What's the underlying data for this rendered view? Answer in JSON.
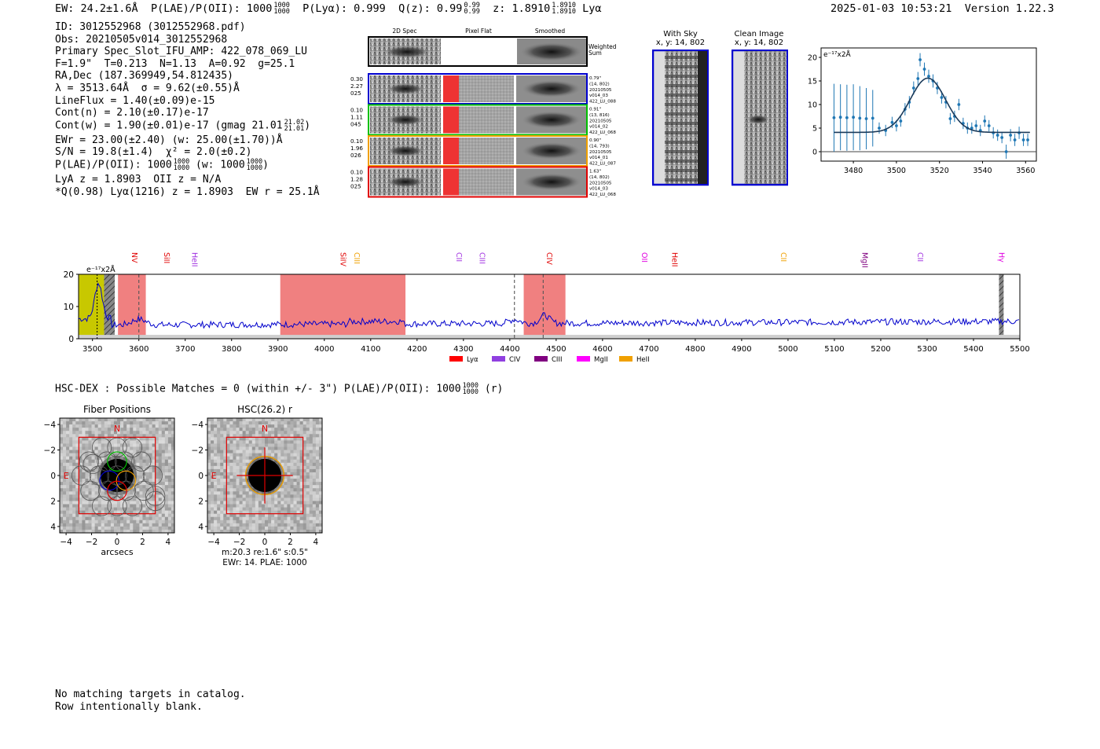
{
  "header": {
    "ew": "EW: 24.2±1.6Å",
    "plae_label": "P(LAE)/P(OII): 1000",
    "plae_hi": "1000",
    "plae_lo": "1000",
    "plya": "P(Lyα): 0.999",
    "qz_label": "Q(z): 0.99",
    "qz_hi": "0.99",
    "qz_lo": "0.99",
    "z_label": "z: 1.8910",
    "z_hi": "1.8910",
    "z_lo": "1.8910",
    "z_line": "Lyα",
    "timestamp": "2025-01-03 10:53:21",
    "version": "Version 1.22.3"
  },
  "info": {
    "id": "ID: 3012552968 (3012552968.pdf)",
    "obs": "Obs: 20210505v014_3012552968",
    "primary": "Primary Spec_Slot_IFU_AMP: 422_078_069_LU",
    "fwhm": "F=1.9\"  T=0.213  N=1.13  A=0.92  g=25.1",
    "radec": "RA,Dec (187.369949,54.812435)",
    "lambda": "λ = 3513.64Å  σ = 9.62(±0.55)Å",
    "lineflux": "LineFlux = 1.40(±0.09)e-15",
    "contn": "Cont(n) = 2.10(±0.17)e-17",
    "contw": "Cont(w) = 1.90(±0.01)e-17 (gmag 21.01",
    "gmag_hi": "21.02",
    "gmag_lo": "21.01",
    "contw_close": ")",
    "ewr": "EWr = 23.00(±2.40) (w: 25.00(±1.70))Å",
    "sn": "S/N = 19.8(±1.4)  χ² = 2.0(±0.2)",
    "plae": "P(LAE)/P(OII): 1000",
    "plae_hi": "1000",
    "plae_lo": "1000",
    "plae_w": "(w: 1000",
    "plae_w_hi": "1000",
    "plae_w_lo": "1000",
    "plae_w_close": ")",
    "lya": "LyA z = 1.8903  OII z = N/A",
    "q": "*Q(0.98) Lyα(1216) z = 1.8903  EW r = 25.1Å"
  },
  "cutouts": {
    "col_2d": "2D Spec",
    "col_flat": "Pixel Flat",
    "col_smooth": "Smoothed",
    "weighted": "Weighted",
    "weighted2": "Sum",
    "rows": [
      {
        "color": "#0000d0",
        "left": [
          "0.30",
          "2.27",
          "025"
        ],
        "right": [
          "0.79\"",
          "(14, 802)",
          "20210505",
          "v014_03",
          "422_LU_088"
        ]
      },
      {
        "color": "#00c000",
        "left": [
          "0.10",
          "1.11",
          "045"
        ],
        "right": [
          "0.91\"",
          "(13, 816)",
          "20210505",
          "v014_02",
          "422_LU_068"
        ]
      },
      {
        "color": "#f0a000",
        "left": [
          "0.10",
          "1.96",
          "026"
        ],
        "right": [
          "0.90\"",
          "(14, 793)",
          "20210505",
          "v014_01",
          "422_LU_087"
        ]
      },
      {
        "color": "#e00000",
        "left": [
          "0.10",
          "1.28",
          "025"
        ],
        "right": [
          "1.63\"",
          "(14, 802)",
          "20210505",
          "v014_03",
          "422_LU_068"
        ]
      }
    ],
    "with_sky": "With Sky",
    "with_sky_xy": "x, y: 14, 802",
    "clean": "Clean Image",
    "clean_xy": "x, y: 14, 802"
  },
  "hsc": {
    "line": "HSC-DEX : Possible Matches = 0 (within +/- 3\")  P(LAE)/P(OII): 1000",
    "plae_hi": "1000",
    "plae_lo": "1000",
    "band": "(r)",
    "fiber_title": "Fiber Positions",
    "hsc_title": "HSC(26.2) r",
    "xlabel": "arcsecs",
    "north": "N",
    "east": "E",
    "ticks": [
      "−4",
      "−2",
      "0",
      "2",
      "4"
    ],
    "mag_line": "m:20.3  re:1.6\"  s:0.5\"",
    "ew_line": "EWr: 14. PLAE: 1000"
  },
  "footer": {
    "line1": "No matching targets in catalog.",
    "line2": "Row intentionally blank."
  },
  "chart_data": [
    {
      "type": "line",
      "name": "emission-line-fit",
      "ylabel_note": "e⁻¹⁷x2Å",
      "xlim": [
        3465,
        3565
      ],
      "ylim": [
        -2,
        22
      ],
      "xticks": [
        3480,
        3500,
        3520,
        3540,
        3560
      ],
      "yticks": [
        0,
        5,
        10,
        15,
        20
      ],
      "points": [
        {
          "x": 3471,
          "y": 7.2,
          "err": 7.2
        },
        {
          "x": 3474,
          "y": 7.3,
          "err": 7.0
        },
        {
          "x": 3477,
          "y": 7.2,
          "err": 7.0
        },
        {
          "x": 3480,
          "y": 7.3,
          "err": 7.0
        },
        {
          "x": 3483,
          "y": 7.1,
          "err": 6.8
        },
        {
          "x": 3486,
          "y": 7.0,
          "err": 6.5
        },
        {
          "x": 3489,
          "y": 7.1,
          "err": 6.0
        },
        {
          "x": 3492,
          "y": 5.0,
          "err": 1.2
        },
        {
          "x": 3495,
          "y": 4.5,
          "err": 1.2
        },
        {
          "x": 3498,
          "y": 6.2,
          "err": 1.2
        },
        {
          "x": 3500,
          "y": 5.5,
          "err": 1.2
        },
        {
          "x": 3502,
          "y": 6.5,
          "err": 1.2
        },
        {
          "x": 3504,
          "y": 9.0,
          "err": 1.3
        },
        {
          "x": 3506,
          "y": 10.5,
          "err": 1.3
        },
        {
          "x": 3508,
          "y": 13.5,
          "err": 1.4
        },
        {
          "x": 3510,
          "y": 15.5,
          "err": 1.4
        },
        {
          "x": 3511,
          "y": 19.5,
          "err": 1.4
        },
        {
          "x": 3513,
          "y": 17.5,
          "err": 1.4
        },
        {
          "x": 3515,
          "y": 16.0,
          "err": 1.4
        },
        {
          "x": 3517,
          "y": 15.0,
          "err": 1.4
        },
        {
          "x": 3519,
          "y": 13.5,
          "err": 1.3
        },
        {
          "x": 3521,
          "y": 11.5,
          "err": 1.3
        },
        {
          "x": 3523,
          "y": 10.5,
          "err": 1.3
        },
        {
          "x": 3525,
          "y": 7.0,
          "err": 1.2
        },
        {
          "x": 3527,
          "y": 7.5,
          "err": 1.2
        },
        {
          "x": 3529,
          "y": 10.0,
          "err": 1.2
        },
        {
          "x": 3531,
          "y": 6.0,
          "err": 1.2
        },
        {
          "x": 3533,
          "y": 5.0,
          "err": 1.2
        },
        {
          "x": 3535,
          "y": 5.0,
          "err": 1.2
        },
        {
          "x": 3537,
          "y": 5.5,
          "err": 1.2
        },
        {
          "x": 3539,
          "y": 4.5,
          "err": 1.2
        },
        {
          "x": 3541,
          "y": 6.5,
          "err": 1.2
        },
        {
          "x": 3543,
          "y": 5.5,
          "err": 1.2
        },
        {
          "x": 3545,
          "y": 4.0,
          "err": 1.2
        },
        {
          "x": 3547,
          "y": 3.5,
          "err": 1.2
        },
        {
          "x": 3549,
          "y": 3.0,
          "err": 1.2
        },
        {
          "x": 3551,
          "y": 0.0,
          "err": 1.5
        },
        {
          "x": 3553,
          "y": 3.5,
          "err": 1.3
        },
        {
          "x": 3555,
          "y": 2.5,
          "err": 1.3
        },
        {
          "x": 3557,
          "y": 4.0,
          "err": 1.3
        },
        {
          "x": 3559,
          "y": 2.5,
          "err": 1.3
        },
        {
          "x": 3561,
          "y": 2.5,
          "err": 1.3
        }
      ],
      "fit": {
        "amplitude": 11.5,
        "center": 3514.6,
        "sigma": 8.2,
        "baseline": 4.1
      }
    },
    {
      "type": "line",
      "name": "full-spectrum",
      "ylabel_note": "e⁻¹⁷x2Å",
      "xlim": [
        3470,
        5500
      ],
      "ylim": [
        0,
        20
      ],
      "xticks": [
        3500,
        3600,
        3700,
        3800,
        3900,
        4000,
        4100,
        4200,
        4300,
        4400,
        4500,
        4600,
        4700,
        4800,
        4900,
        5000,
        5100,
        5200,
        5300,
        5400,
        5500
      ],
      "yticks": [
        0,
        10,
        20
      ],
      "shaded_red": [
        [
          3555,
          3615
        ],
        [
          3905,
          4175
        ],
        [
          4430,
          4520
        ]
      ],
      "shaded_yellow": [
        3470,
        3525
      ],
      "hatched": [
        [
          3525,
          3548
        ],
        [
          5455,
          5465
        ]
      ],
      "dashed_lines": [
        3600,
        4410,
        4472
      ],
      "line_labels": [
        {
          "label": "NV",
          "x": 3580,
          "color": "#e00000"
        },
        {
          "label": "SiII",
          "x": 3650,
          "color": "#e00000"
        },
        {
          "label": "HeII",
          "x": 3710,
          "color": "#a030e0"
        },
        {
          "label": "SiIV",
          "x": 4030,
          "color": "#e00000"
        },
        {
          "label": "CIII",
          "x": 4060,
          "color": "#f0a000"
        },
        {
          "label": "CII",
          "x": 4280,
          "color": "#a030e0"
        },
        {
          "label": "CIII",
          "x": 4330,
          "color": "#a030e0"
        },
        {
          "label": "CIV",
          "x": 4475,
          "color": "#e00000"
        },
        {
          "label": "OII",
          "x": 4680,
          "color": "#e000e0"
        },
        {
          "label": "HeII",
          "x": 4745,
          "color": "#e00000"
        },
        {
          "label": "CII",
          "x": 4980,
          "color": "#f0a000"
        },
        {
          "label": "MgII",
          "x": 5155,
          "color": "#800080"
        },
        {
          "label": "CII",
          "x": 5275,
          "color": "#a030e0"
        },
        {
          "label": "Hγ",
          "x": 5450,
          "color": "#e000e0"
        }
      ],
      "legend": [
        {
          "label": "Lyα",
          "color": "#ff0000"
        },
        {
          "label": "CIV",
          "color": "#9040e0"
        },
        {
          "label": "CIII",
          "color": "#800080"
        },
        {
          "label": "MgII",
          "color": "#ff00ff"
        },
        {
          "label": "HeII",
          "color": "#f0a000"
        }
      ],
      "series_color": "#0000cc"
    }
  ]
}
